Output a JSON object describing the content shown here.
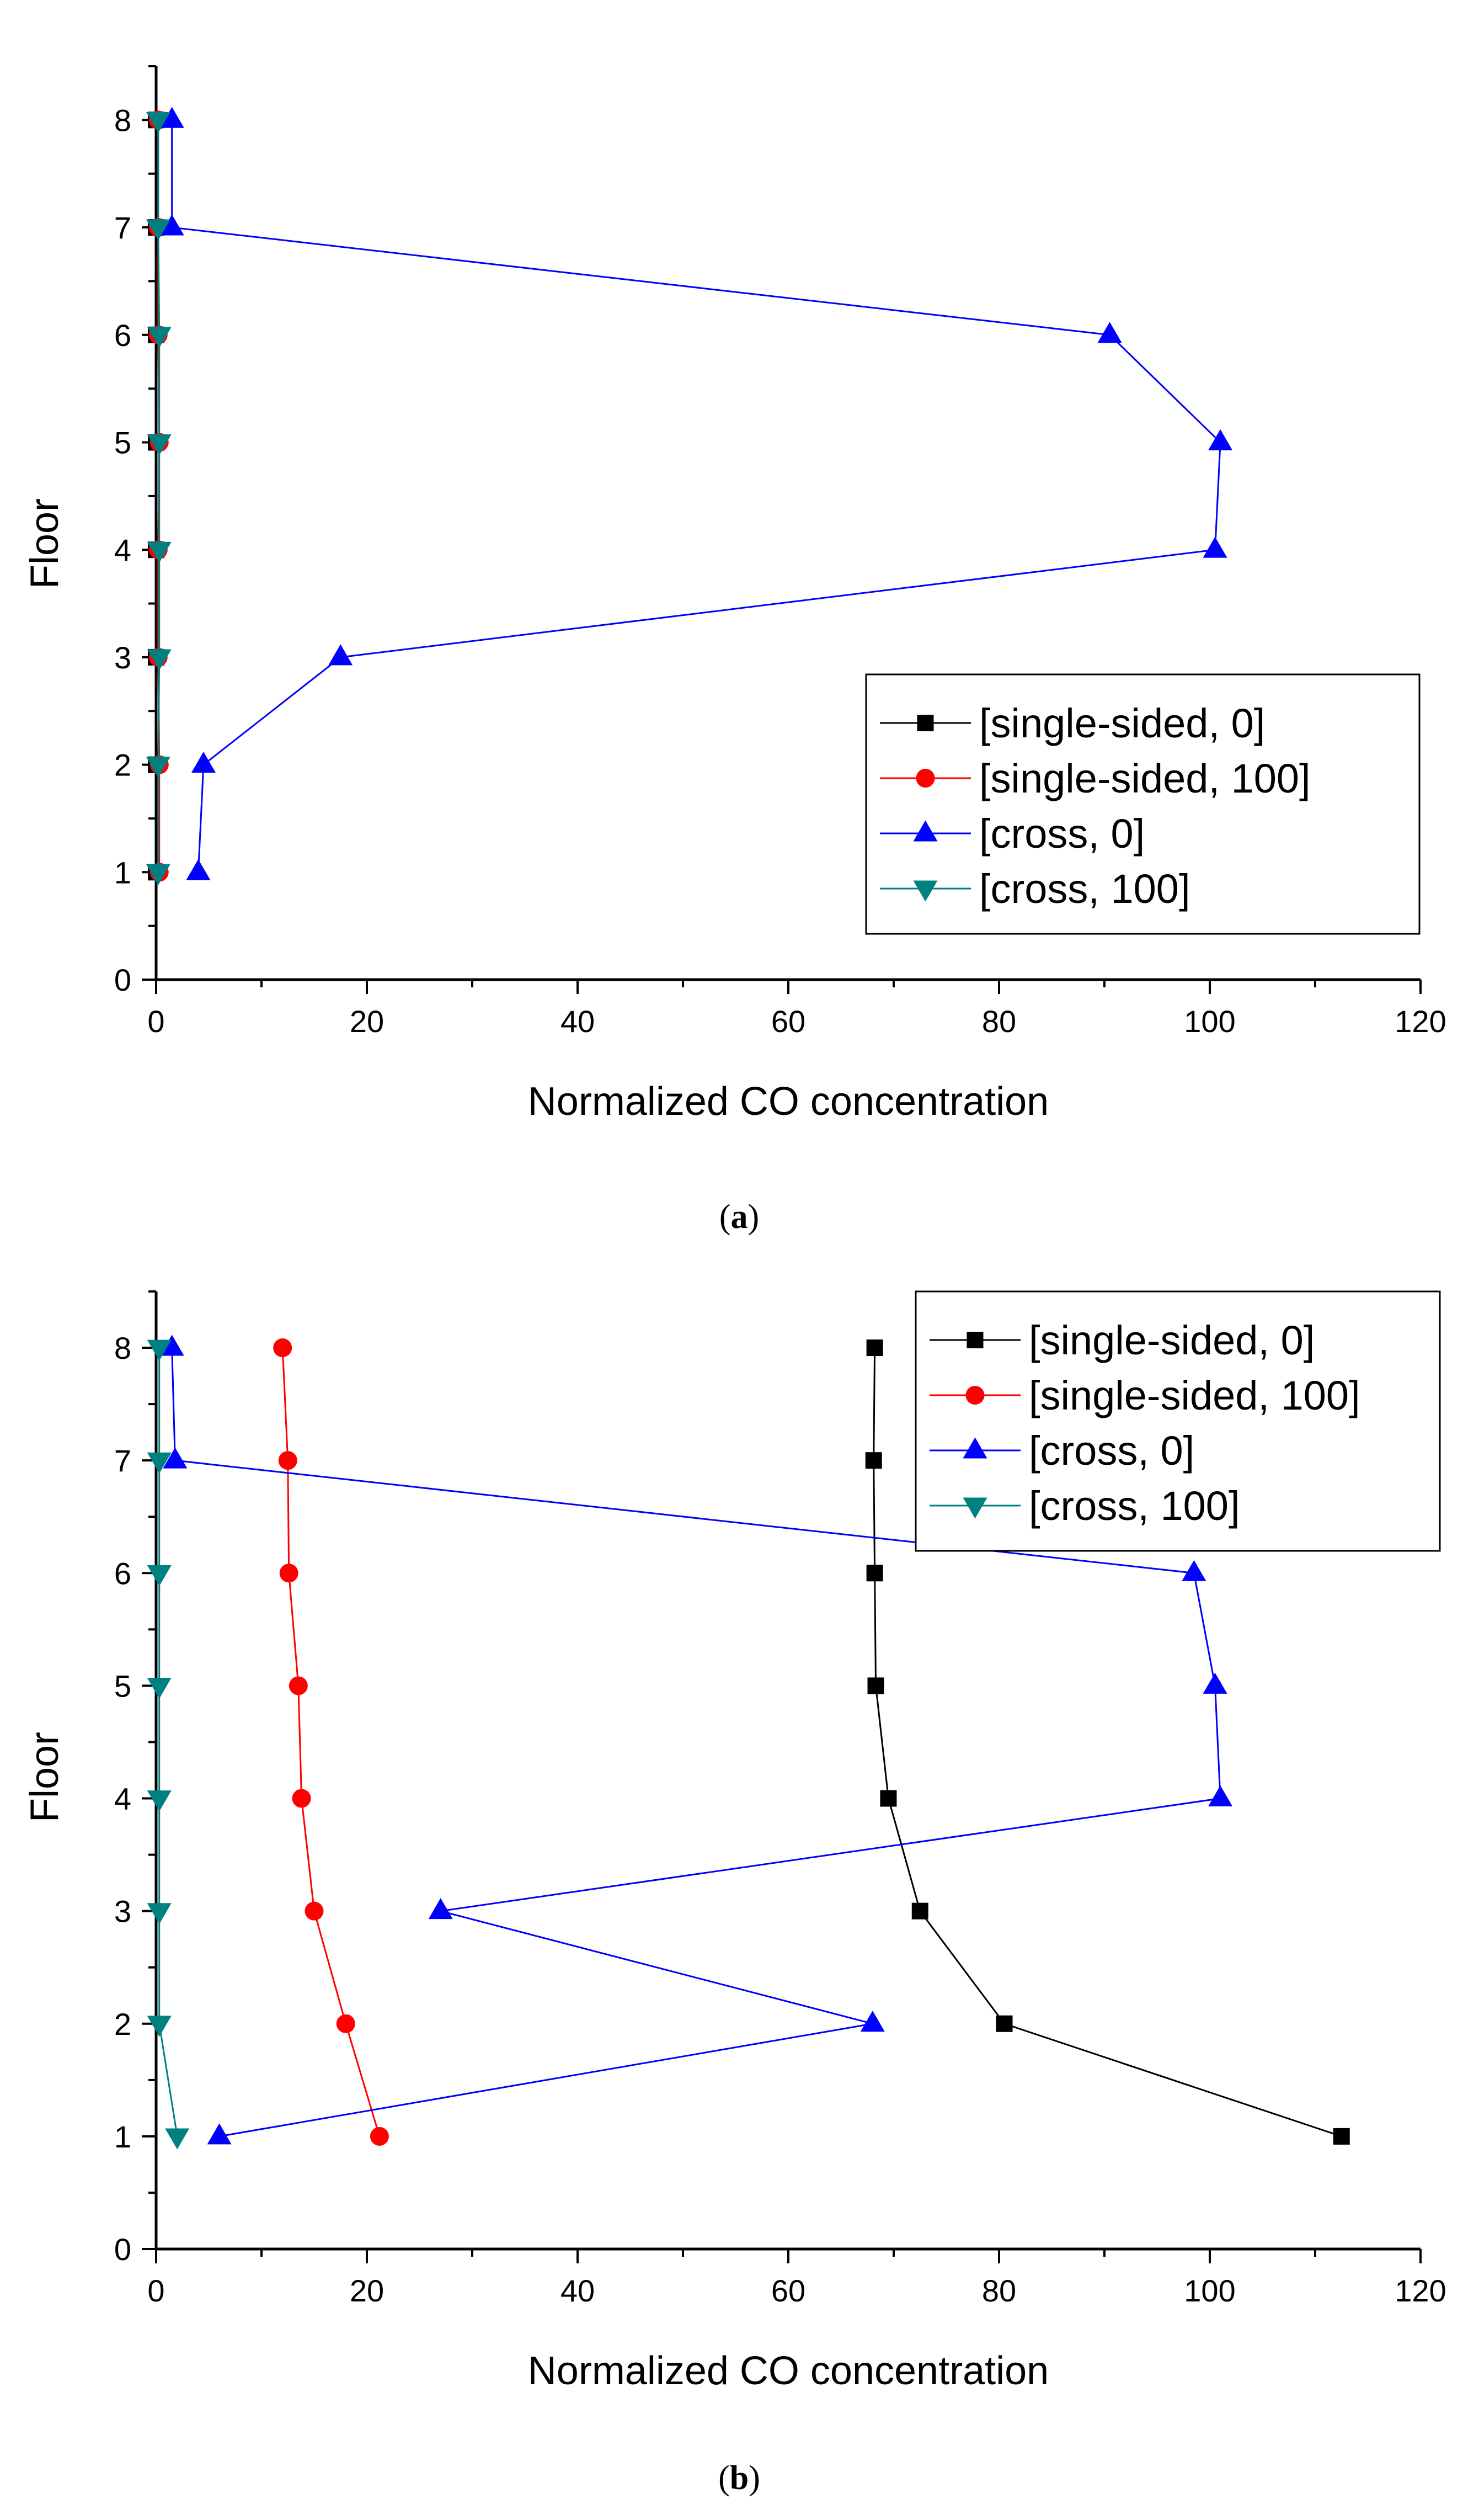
{
  "colors": {
    "single_sided_0": "#000000",
    "single_sided_100": "#ff0000",
    "cross_0": "#0000ff",
    "cross_100": "#008080"
  },
  "chart_data": [
    {
      "type": "line",
      "caption_letter": "a",
      "xlabel": "Normalized CO concentration",
      "ylabel": "Floor",
      "xlim": [
        0,
        120
      ],
      "ylim": [
        0,
        8.5
      ],
      "xticks": [
        0,
        20,
        40,
        60,
        80,
        100,
        120
      ],
      "yticks": [
        0,
        1,
        2,
        3,
        4,
        5,
        6,
        7,
        8
      ],
      "legend": "bottom-right",
      "series": [
        {
          "name": "[single-sided, 0]",
          "marker": "square",
          "color": "#000000",
          "points": [
            [
              0,
              1
            ],
            [
              0,
              2
            ],
            [
              0,
              3
            ],
            [
              0,
              4
            ],
            [
              0,
              5
            ],
            [
              0,
              6
            ],
            [
              0,
              7
            ],
            [
              0,
              8
            ]
          ]
        },
        {
          "name": "[single-sided, 100]",
          "marker": "circle",
          "color": "#ff0000",
          "points": [
            [
              0.3,
              1
            ],
            [
              0.3,
              2
            ],
            [
              0.2,
              3
            ],
            [
              0.2,
              4
            ],
            [
              0.3,
              5
            ],
            [
              0.2,
              6
            ],
            [
              0.2,
              7
            ],
            [
              0.2,
              8
            ]
          ]
        },
        {
          "name": "[cross, 0]",
          "marker": "triangle-up",
          "color": "#0000ff",
          "points": [
            [
              4,
              1
            ],
            [
              4.5,
              2
            ],
            [
              17.5,
              3
            ],
            [
              100.5,
              4
            ],
            [
              101,
              5
            ],
            [
              90.5,
              6
            ],
            [
              1.5,
              7
            ],
            [
              1.5,
              8
            ]
          ]
        },
        {
          "name": "[cross, 100]",
          "marker": "triangle-down",
          "color": "#008080",
          "points": [
            [
              0.2,
              1
            ],
            [
              0.2,
              2
            ],
            [
              0.3,
              3
            ],
            [
              0.3,
              4
            ],
            [
              0.3,
              5
            ],
            [
              0.3,
              6
            ],
            [
              0.2,
              7
            ],
            [
              0.2,
              8
            ]
          ]
        }
      ]
    },
    {
      "type": "line",
      "caption_letter": "b",
      "xlabel": "Normalized CO concentration",
      "ylabel": "Floor",
      "xlim": [
        0,
        120
      ],
      "ylim": [
        0,
        8.5
      ],
      "xticks": [
        0,
        20,
        40,
        60,
        80,
        100,
        120
      ],
      "yticks": [
        0,
        1,
        2,
        3,
        4,
        5,
        6,
        7,
        8
      ],
      "legend": "top-right",
      "series": [
        {
          "name": "[single-sided, 0]",
          "marker": "square",
          "color": "#000000",
          "points": [
            [
              112.5,
              1
            ],
            [
              80.5,
              2
            ],
            [
              72.5,
              3
            ],
            [
              69.5,
              4
            ],
            [
              68.3,
              5
            ],
            [
              68.2,
              6
            ],
            [
              68.1,
              7
            ],
            [
              68.2,
              8
            ]
          ]
        },
        {
          "name": "[single-sided, 100]",
          "marker": "circle",
          "color": "#ff0000",
          "points": [
            [
              21.2,
              1
            ],
            [
              18,
              2
            ],
            [
              15,
              3
            ],
            [
              13.8,
              4
            ],
            [
              13.5,
              5
            ],
            [
              12.6,
              6
            ],
            [
              12.5,
              7
            ],
            [
              12,
              8
            ]
          ]
        },
        {
          "name": "[cross, 0]",
          "marker": "triangle-up",
          "color": "#0000ff",
          "points": [
            [
              6,
              1
            ],
            [
              68,
              2
            ],
            [
              27,
              3
            ],
            [
              101,
              4
            ],
            [
              100.5,
              5
            ],
            [
              98.5,
              6
            ],
            [
              1.8,
              7
            ],
            [
              1.5,
              8
            ]
          ]
        },
        {
          "name": "[cross, 100]",
          "marker": "triangle-down",
          "color": "#008080",
          "points": [
            [
              2,
              1
            ],
            [
              0.3,
              2
            ],
            [
              0.3,
              3
            ],
            [
              0.3,
              4
            ],
            [
              0.3,
              5
            ],
            [
              0.3,
              6
            ],
            [
              0.3,
              7
            ],
            [
              0.3,
              8
            ]
          ]
        }
      ]
    }
  ]
}
